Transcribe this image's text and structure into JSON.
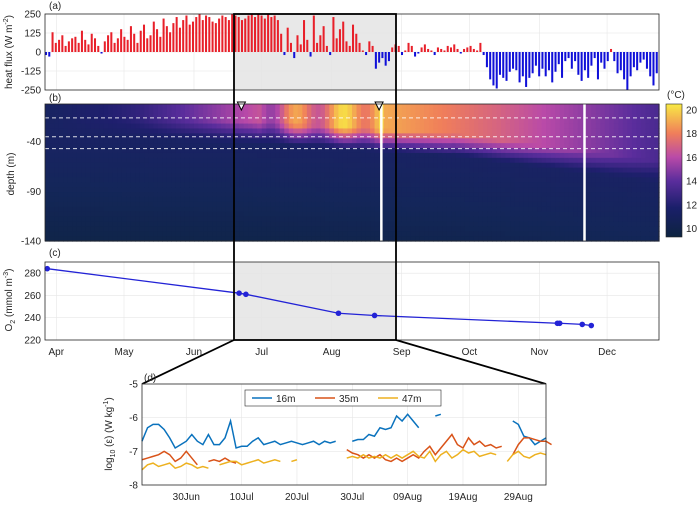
{
  "chart_data": [
    {
      "panel": "a",
      "type": "bar",
      "label": "(a)",
      "ylabel": "heat flux (W m-2)",
      "ylabel_parts": [
        "heat flux (W m",
        "-2",
        ")"
      ],
      "ylim": [
        -250,
        250
      ],
      "yticks": [
        "250",
        "125",
        "0",
        "-125",
        "-250"
      ],
      "ytick_values": [
        250,
        125,
        0,
        -125,
        -250
      ],
      "positive_color": "#e8202a",
      "negative_color": "#1010d8",
      "x_start": "27-Mar",
      "x_end": "24-Dec",
      "daily_values_approx": [
        -20,
        -30,
        130,
        60,
        80,
        110,
        40,
        70,
        90,
        100,
        60,
        140,
        80,
        50,
        120,
        90,
        40,
        -10,
        70,
        110,
        130,
        60,
        90,
        150,
        100,
        80,
        170,
        120,
        60,
        140,
        180,
        90,
        110,
        200,
        150,
        100,
        220,
        170,
        130,
        190,
        230,
        160,
        210,
        240,
        180,
        200,
        230,
        250,
        210,
        240,
        230,
        200,
        190,
        220,
        240,
        230,
        210,
        250,
        240,
        230,
        210,
        220,
        240,
        250,
        230,
        250,
        240,
        220,
        250,
        230,
        240,
        210,
        120,
        -20,
        160,
        60,
        -40,
        110,
        50,
        210,
        80,
        -30,
        240,
        60,
        110,
        170,
        40,
        -20,
        230,
        90,
        150,
        200,
        70,
        40,
        180,
        120,
        60,
        10,
        -20,
        70,
        40,
        -110,
        -70,
        -40,
        -90,
        -60,
        30,
        50,
        40,
        -20,
        10,
        60,
        40,
        -30,
        -10,
        30,
        50,
        20,
        10,
        -20,
        30,
        20,
        10,
        40,
        30,
        50,
        20,
        -10,
        20,
        30,
        40,
        20,
        10,
        60,
        -20,
        -100,
        -180,
        -220,
        -240,
        -150,
        -170,
        -190,
        -130,
        -110,
        -120,
        -200,
        -160,
        -230,
        -170,
        -140,
        -90,
        -160,
        -110,
        -160,
        -120,
        -200,
        -130,
        -80,
        -170,
        -60,
        -40,
        -110,
        -60,
        -150,
        -190,
        -120,
        -170,
        -90,
        -40,
        -180,
        -70,
        -110,
        -60,
        20,
        -60,
        -140,
        -120,
        -180,
        -250,
        -160,
        -100,
        -120,
        -70,
        -50,
        -110,
        -160,
        -220,
        -140
      ]
    },
    {
      "panel": "b",
      "type": "heatmap",
      "label": "(b)",
      "ylabel": "depth (m)",
      "yticks": [
        "-40",
        "-90",
        "-140"
      ],
      "ytick_values": [
        -40,
        -90,
        -140
      ],
      "ylim": [
        -140,
        -2
      ],
      "colorbar_unit": "(°C)",
      "colorbar_ticks": [
        "20",
        "18",
        "16",
        "14",
        "12",
        "10"
      ],
      "colorbar_tick_values": [
        20,
        18,
        16,
        14,
        12,
        10
      ],
      "clim": [
        9.3,
        20.5
      ],
      "dashed_depths_m": [
        -16,
        -35,
        -47
      ],
      "markers": [
        "22-Jun",
        "22-Aug"
      ],
      "gaps": [
        "23-Aug",
        "21-Nov"
      ],
      "description_values": {
        "surface_max_C": 20,
        "deep_min_C": 10
      }
    },
    {
      "panel": "c",
      "type": "line",
      "label": "(c)",
      "ylabel_parts": [
        "O",
        "2",
        " (mmol m",
        "-3",
        ")"
      ],
      "ylim": [
        220,
        290
      ],
      "yticks": [
        "280",
        "260",
        "240",
        "220"
      ],
      "ytick_values": [
        280,
        260,
        240,
        220
      ],
      "line_color": "#2323d6",
      "x": [
        "28-Mar",
        "21-Jun",
        "24-Jun",
        "4-Aug",
        "20-Aug",
        "9-Nov",
        "10-Nov",
        "20-Nov",
        "24-Nov"
      ],
      "y": [
        284,
        262,
        261,
        244,
        242,
        235,
        235,
        234,
        233
      ]
    },
    {
      "panel": "shared_x",
      "xticks": [
        "Apr",
        "May",
        "Jun",
        "Jul",
        "Aug",
        "Sep",
        "Oct",
        "Nov",
        "Dec"
      ],
      "xtick_days": [
        5,
        35,
        66,
        96,
        127,
        158,
        188,
        219,
        249
      ],
      "highlight_range": [
        "22-Jun",
        "3-Sep"
      ]
    },
    {
      "panel": "d",
      "type": "line",
      "label": "(d)",
      "ylabel_parts": [
        "log",
        "10",
        " (ε) (W kg",
        "-1",
        ")"
      ],
      "ylim": [
        -8,
        -5
      ],
      "yticks": [
        "-5",
        "-6",
        "-7",
        "-8"
      ],
      "ytick_values": [
        -5,
        -6,
        -7,
        -8
      ],
      "xticks": [
        "30Jun",
        "10Jul",
        "20Jul",
        "30Jul",
        "09Aug",
        "19Aug",
        "29Aug"
      ],
      "xtick_days": [
        8,
        18,
        28,
        38,
        48,
        58,
        68
      ],
      "x_range_days": [
        0,
        73
      ],
      "series": [
        {
          "name": "16m",
          "color": "#0a72bd",
          "values": [
            -6.7,
            -6.3,
            -6.2,
            -6.2,
            -6.35,
            -6.6,
            -6.9,
            -6.8,
            -6.7,
            -6.5,
            -6.7,
            -6.8,
            -6.5,
            -6.8,
            -6.8,
            -6.6,
            -6.1,
            -6.9,
            -6.85,
            -6.85,
            -6.7,
            -6.6,
            -6.8,
            -6.75,
            -6.7,
            -6.8,
            -6.75,
            -6.7,
            -6.75,
            -6.8,
            -6.75,
            -6.7,
            -6.8,
            -6.7,
            -6.75,
            -6.7,
            null,
            null,
            -6.7,
            -6.65,
            -6.65,
            -6.5,
            -6.55,
            -6.3,
            -6.35,
            -6.3,
            -5.95,
            -6.1,
            -5.9,
            -6.1,
            -6.3,
            null,
            null,
            -5.95,
            -5.9,
            null,
            null,
            null,
            null,
            null,
            null,
            null,
            null,
            null,
            null,
            null,
            null,
            -6.1,
            -6.2,
            -6.55,
            -6.6,
            -6.8,
            -6.7,
            -6.6
          ]
        },
        {
          "name": "35m",
          "color": "#d95319",
          "values": [
            -7.25,
            -7.2,
            -7.15,
            -7.1,
            -7.0,
            -7.1,
            -7.3,
            -7.2,
            -7.0,
            -7.2,
            -7.4,
            null,
            -7.3,
            -7.25,
            -7.3,
            -7.2,
            -7.3,
            -7.35,
            null,
            null,
            null,
            null,
            null,
            null,
            null,
            null,
            null,
            null,
            null,
            null,
            null,
            null,
            null,
            null,
            null,
            null,
            null,
            -6.95,
            -7.05,
            -7.1,
            -7.2,
            -7.1,
            -7.2,
            -7.1,
            -7.25,
            -7.3,
            -7.2,
            -7.3,
            -7.2,
            -7.1,
            -7.2,
            -7.0,
            -6.85,
            -7.1,
            -6.9,
            -6.7,
            -6.5,
            -6.8,
            -6.9,
            -6.6,
            -6.8,
            -6.7,
            -6.85,
            -6.8,
            -6.9,
            -6.85,
            null,
            -7.1,
            -6.8,
            -6.6,
            -6.6,
            -6.65,
            -6.7,
            -6.7,
            -6.8
          ]
        },
        {
          "name": "47m",
          "color": "#edb120",
          "values": [
            -7.55,
            -7.4,
            -7.35,
            -7.45,
            -7.4,
            -7.35,
            -7.5,
            -7.45,
            -7.35,
            -7.4,
            -7.5,
            -7.45,
            -7.5,
            null,
            -7.4,
            -7.35,
            -7.3,
            -7.3,
            -7.4,
            -7.35,
            -7.3,
            -7.25,
            -7.35,
            -7.3,
            -7.25,
            -7.3,
            null,
            -7.3,
            -7.25,
            null,
            null,
            null,
            null,
            null,
            null,
            null,
            null,
            -7.2,
            -7.15,
            -7.2,
            -7.1,
            -7.2,
            -7.15,
            -7.2,
            -7.1,
            -7.2,
            -7.1,
            -7.2,
            -7.1,
            -7.0,
            -7.15,
            -7.2,
            -7.0,
            -7.3,
            -7.1,
            -7.0,
            -7.2,
            -7.1,
            -6.95,
            -7.05,
            -7.0,
            -7.15,
            -7.1,
            -7.05,
            -7.1,
            null,
            -7.3,
            -7.1,
            -7.0,
            -7.15,
            -7.2,
            -7.1,
            -7.05,
            -7.1
          ]
        }
      ]
    }
  ]
}
